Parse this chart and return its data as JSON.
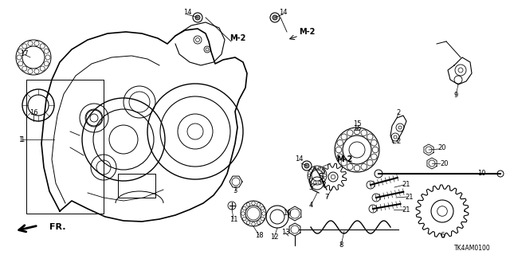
{
  "bg_color": "#ffffff",
  "line_color": "#000000",
  "fig_w": 6.4,
  "fig_h": 3.2,
  "dpi": 100
}
